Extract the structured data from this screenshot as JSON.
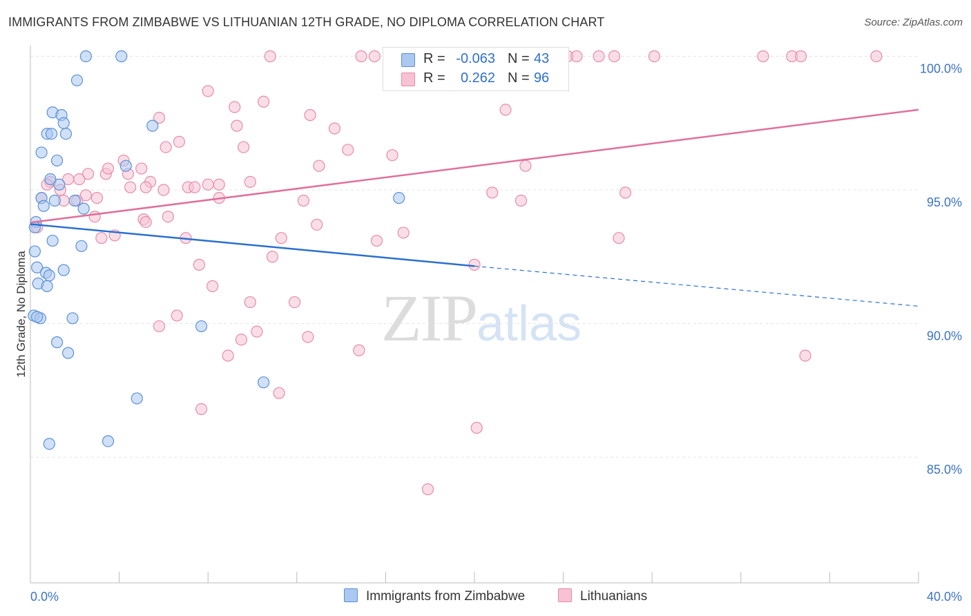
{
  "title": "IMMIGRANTS FROM ZIMBABWE VS LITHUANIAN 12TH GRADE, NO DIPLOMA CORRELATION CHART",
  "source": "Source: ZipAtlas.com",
  "watermark": {
    "zip": "ZIP",
    "atlas": "atlas"
  },
  "legend_top": {
    "rows": [
      {
        "r_label": "R =",
        "r_value": "-0.063",
        "n_label": "N =",
        "n_value": "43"
      },
      {
        "r_label": "R =",
        "r_value": "0.262",
        "n_label": "N =",
        "n_value": "96"
      }
    ]
  },
  "legend_bottom": [
    "Immigrants from Zimbabwe",
    "Lithuanians"
  ],
  "colors": {
    "zimbabwe_fill": "#aac8f0",
    "zimbabwe_stroke": "#5b8fd8",
    "zimbabwe_line": "#2a6fcf",
    "lithuanian_fill": "#f6c2d4",
    "lithuanian_stroke": "#e88aab",
    "lithuanian_line": "#e0709a",
    "tick_label": "#3b73c8",
    "grid": "#e4e4e4"
  },
  "chart_data": {
    "type": "scatter",
    "title": "IMMIGRANTS FROM ZIMBABWE VS LITHUANIAN 12TH GRADE, NO DIPLOMA CORRELATION CHART",
    "xlabel": "",
    "ylabel": "12th Grade, No Diploma",
    "xlim": [
      0,
      40
    ],
    "ylim": [
      80.3,
      100.4
    ],
    "x_tick_labels": [
      "0.0%",
      "40.0%"
    ],
    "y_ticks": [
      85,
      90,
      95,
      100
    ],
    "y_tick_labels": [
      "85.0%",
      "90.0%",
      "95.0%",
      "100.0%"
    ],
    "grid": true,
    "legend_position": "bottom",
    "series": [
      {
        "name": "Immigrants from Zimbabwe",
        "r": -0.063,
        "n": 43,
        "trend": {
          "x": [
            0,
            20
          ],
          "y": [
            93.72,
            92.15
          ],
          "dashed_to": [
            40,
            90.65
          ]
        },
        "points": [
          [
            2.5,
            100
          ],
          [
            4.1,
            100
          ],
          [
            2.1,
            99.1
          ],
          [
            1.0,
            97.9
          ],
          [
            1.4,
            97.8
          ],
          [
            1.5,
            97.5
          ],
          [
            0.75,
            97.1
          ],
          [
            0.95,
            97.1
          ],
          [
            1.6,
            97.1
          ],
          [
            5.5,
            97.4
          ],
          [
            0.5,
            96.4
          ],
          [
            1.2,
            96.1
          ],
          [
            4.3,
            95.9
          ],
          [
            0.9,
            95.4
          ],
          [
            1.3,
            95.2
          ],
          [
            0.5,
            94.7
          ],
          [
            1.1,
            94.6
          ],
          [
            2.0,
            94.6
          ],
          [
            0.6,
            94.4
          ],
          [
            2.4,
            94.3
          ],
          [
            16.6,
            94.7
          ],
          [
            0.25,
            93.8
          ],
          [
            0.2,
            93.6
          ],
          [
            1.0,
            93.1
          ],
          [
            2.3,
            92.9
          ],
          [
            0.2,
            92.7
          ],
          [
            0.3,
            92.1
          ],
          [
            0.7,
            91.9
          ],
          [
            0.85,
            91.8
          ],
          [
            1.5,
            92.0
          ],
          [
            0.35,
            91.5
          ],
          [
            0.75,
            91.4
          ],
          [
            0.15,
            90.3
          ],
          [
            0.45,
            90.2
          ],
          [
            1.9,
            90.2
          ],
          [
            7.7,
            89.9
          ],
          [
            1.2,
            89.3
          ],
          [
            1.7,
            88.9
          ],
          [
            10.5,
            87.8
          ],
          [
            4.8,
            87.2
          ],
          [
            0.85,
            85.5
          ],
          [
            3.5,
            85.6
          ],
          [
            0.3,
            90.25
          ]
        ]
      },
      {
        "name": "Lithuanians",
        "r": 0.262,
        "n": 96,
        "trend": {
          "x": [
            0,
            40
          ],
          "y": [
            93.78,
            98.0
          ]
        },
        "points": [
          [
            10.8,
            100
          ],
          [
            14.9,
            100
          ],
          [
            15.5,
            100
          ],
          [
            16.2,
            100
          ],
          [
            18.8,
            100
          ],
          [
            19.2,
            100
          ],
          [
            19.6,
            100
          ],
          [
            20.5,
            100
          ],
          [
            22.4,
            100
          ],
          [
            22.9,
            100
          ],
          [
            23.4,
            100
          ],
          [
            24.2,
            100
          ],
          [
            24.6,
            100
          ],
          [
            25.6,
            100
          ],
          [
            26.3,
            100
          ],
          [
            28.1,
            100
          ],
          [
            33.0,
            100
          ],
          [
            34.3,
            100
          ],
          [
            34.7,
            100
          ],
          [
            38.1,
            100
          ],
          [
            8.0,
            98.7
          ],
          [
            10.5,
            98.3
          ],
          [
            9.2,
            98.1
          ],
          [
            12.6,
            97.8
          ],
          [
            5.8,
            97.7
          ],
          [
            9.3,
            97.4
          ],
          [
            13.7,
            97.3
          ],
          [
            21.4,
            98.0
          ],
          [
            6.7,
            96.8
          ],
          [
            6.1,
            96.6
          ],
          [
            9.6,
            96.6
          ],
          [
            14.3,
            96.5
          ],
          [
            16.3,
            96.3
          ],
          [
            4.2,
            96.1
          ],
          [
            13.0,
            95.9
          ],
          [
            22.3,
            95.9
          ],
          [
            5.0,
            95.8
          ],
          [
            2.6,
            95.6
          ],
          [
            3.4,
            95.6
          ],
          [
            3.5,
            95.8
          ],
          [
            4.4,
            95.6
          ],
          [
            9.9,
            95.3
          ],
          [
            8.5,
            95.2
          ],
          [
            1.7,
            95.4
          ],
          [
            0.9,
            95.3
          ],
          [
            2.2,
            95.4
          ],
          [
            0.75,
            95.2
          ],
          [
            1.35,
            95.0
          ],
          [
            5.4,
            95.3
          ],
          [
            4.5,
            95.1
          ],
          [
            5.2,
            95.1
          ],
          [
            6.0,
            95.0
          ],
          [
            7.1,
            95.1
          ],
          [
            7.4,
            95.1
          ],
          [
            8.0,
            95.2
          ],
          [
            2.5,
            94.8
          ],
          [
            0.5,
            94.7
          ],
          [
            1.5,
            94.6
          ],
          [
            3.0,
            94.7
          ],
          [
            2.1,
            94.6
          ],
          [
            8.5,
            94.7
          ],
          [
            12.3,
            94.6
          ],
          [
            20.8,
            94.9
          ],
          [
            22.1,
            94.6
          ],
          [
            26.8,
            94.9
          ],
          [
            2.9,
            94.0
          ],
          [
            6.2,
            94.0
          ],
          [
            5.1,
            93.9
          ],
          [
            5.2,
            93.8
          ],
          [
            12.9,
            93.7
          ],
          [
            16.8,
            93.4
          ],
          [
            3.2,
            93.2
          ],
          [
            3.8,
            93.3
          ],
          [
            7.0,
            93.2
          ],
          [
            11.3,
            93.2
          ],
          [
            15.6,
            93.1
          ],
          [
            26.5,
            93.2
          ],
          [
            0.3,
            93.6
          ],
          [
            10.9,
            92.5
          ],
          [
            7.6,
            92.2
          ],
          [
            20.0,
            92.2
          ],
          [
            8.2,
            91.4
          ],
          [
            9.9,
            90.8
          ],
          [
            11.9,
            90.8
          ],
          [
            6.6,
            90.3
          ],
          [
            5.8,
            89.9
          ],
          [
            10.2,
            89.7
          ],
          [
            9.5,
            89.4
          ],
          [
            12.5,
            89.5
          ],
          [
            8.9,
            88.8
          ],
          [
            14.8,
            89.0
          ],
          [
            34.9,
            88.8
          ],
          [
            11.2,
            87.4
          ],
          [
            7.7,
            86.8
          ],
          [
            20.1,
            86.1
          ],
          [
            17.9,
            83.8
          ]
        ]
      }
    ]
  }
}
